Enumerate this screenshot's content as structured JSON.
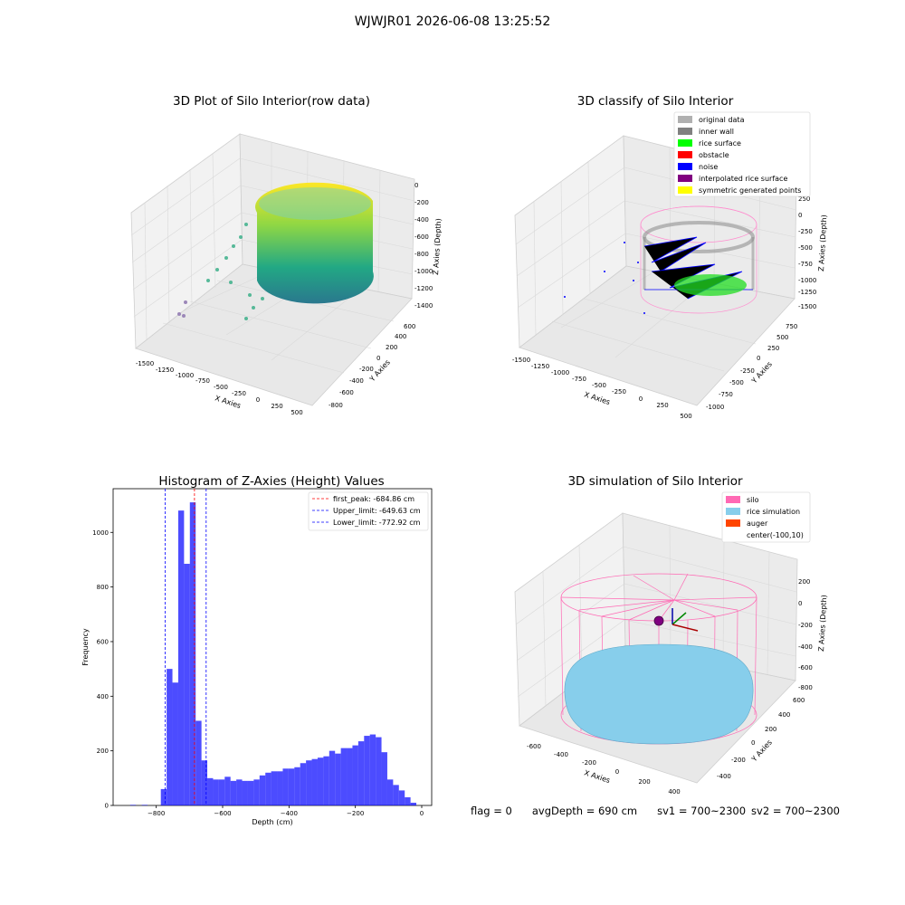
{
  "suptitle": "WJWJR01 2026-06-08 13:25:52",
  "panels": {
    "raw": {
      "title": "3D Plot of Silo Interior(row data)",
      "xlabel": "X Axies",
      "ylabel": "Y Axies",
      "zlabel": "Z Axies (Depth)",
      "xticks": [
        "-1500",
        "-1250",
        "-1000",
        "-750",
        "-500",
        "-250",
        "0",
        "250",
        "500"
      ],
      "yticks": [
        "600",
        "400",
        "200",
        "0",
        "-200",
        "-400",
        "-600",
        "-800"
      ],
      "zticks": [
        "0",
        "-200",
        "-400",
        "-600",
        "-800",
        "-1000",
        "-1200",
        "-1400"
      ]
    },
    "classify": {
      "title": "3D classify of Silo Interior",
      "xlabel": "X Axies",
      "ylabel": "Y Axies",
      "zlabel": "Z Axies (Depth)",
      "xticks": [
        "-1500",
        "-1250",
        "-1000",
        "-750",
        "-500",
        "-250",
        "0",
        "250",
        "500"
      ],
      "yticks": [
        "750",
        "500",
        "250",
        "0",
        "-250",
        "-500",
        "-750",
        "-1000"
      ],
      "zticks": [
        "250",
        "0",
        "-250",
        "-500",
        "-750",
        "-1000",
        "-1250",
        "-1500"
      ],
      "legend": [
        {
          "label": "original data",
          "color": "#b0b0b0"
        },
        {
          "label": "inner wall",
          "color": "#808080"
        },
        {
          "label": "rice surface",
          "color": "#00ff00"
        },
        {
          "label": "obstacle",
          "color": "#ff0000"
        },
        {
          "label": "noise",
          "color": "#0000ff"
        },
        {
          "label": "interpolated rice surface",
          "color": "#800080"
        },
        {
          "label": "symmetric generated points",
          "color": "#ffff00"
        }
      ]
    },
    "simulation": {
      "title": "3D simulation of Silo Interior",
      "xlabel": "X Axies",
      "ylabel": "Y Axies",
      "zlabel": "Z Axies (Depth)",
      "xticks": [
        "-600",
        "-400",
        "-200",
        "0",
        "200",
        "400"
      ],
      "yticks": [
        "600",
        "400",
        "200",
        "0",
        "-200",
        "-400"
      ],
      "zticks": [
        "200",
        "0",
        "-200",
        "-400",
        "-600",
        "-800"
      ],
      "legend": [
        {
          "label": "silo",
          "color": "#ff69b4"
        },
        {
          "label": "rice simulation",
          "color": "#87ceeb"
        },
        {
          "label": "auger",
          "color": "#ff4500"
        },
        {
          "label": "center(-100,10)",
          "color": ""
        }
      ]
    }
  },
  "footer": {
    "flag": "flag = 0",
    "avg": "avgDepth = 690 cm",
    "sv1": "sv1 = 700~2300",
    "sv2": "sv2 = 700~2300"
  },
  "chart_data": {
    "type": "bar",
    "title": "Histogram of Z-Axies (Height) Values",
    "xlabel": "Depth (cm)",
    "ylabel": "Frequency",
    "xlim": [
      -930,
      30
    ],
    "ylim": [
      0,
      1160
    ],
    "xticks": [
      -800,
      -600,
      -400,
      -200,
      0
    ],
    "yticks": [
      0,
      200,
      400,
      600,
      800,
      1000
    ],
    "color": "#0000ff",
    "bin_width": 17.5,
    "bins": [
      {
        "x": -870,
        "y": 2
      },
      {
        "x": -835,
        "y": 2
      },
      {
        "x": -777.5,
        "y": 60
      },
      {
        "x": -760,
        "y": 500
      },
      {
        "x": -742.5,
        "y": 450
      },
      {
        "x": -725,
        "y": 1080
      },
      {
        "x": -707.5,
        "y": 885
      },
      {
        "x": -690,
        "y": 1110
      },
      {
        "x": -672.5,
        "y": 310
      },
      {
        "x": -655,
        "y": 165
      },
      {
        "x": -637.5,
        "y": 100
      },
      {
        "x": -620,
        "y": 95
      },
      {
        "x": -602.5,
        "y": 95
      },
      {
        "x": -585,
        "y": 105
      },
      {
        "x": -567.5,
        "y": 90
      },
      {
        "x": -550,
        "y": 95
      },
      {
        "x": -532.5,
        "y": 90
      },
      {
        "x": -515,
        "y": 90
      },
      {
        "x": -497.5,
        "y": 95
      },
      {
        "x": -480,
        "y": 110
      },
      {
        "x": -462.5,
        "y": 120
      },
      {
        "x": -445,
        "y": 125
      },
      {
        "x": -427.5,
        "y": 125
      },
      {
        "x": -410,
        "y": 135
      },
      {
        "x": -392.5,
        "y": 135
      },
      {
        "x": -375,
        "y": 140
      },
      {
        "x": -357.5,
        "y": 155
      },
      {
        "x": -340,
        "y": 165
      },
      {
        "x": -322.5,
        "y": 170
      },
      {
        "x": -305,
        "y": 175
      },
      {
        "x": -287.5,
        "y": 180
      },
      {
        "x": -270,
        "y": 200
      },
      {
        "x": -252.5,
        "y": 190
      },
      {
        "x": -235,
        "y": 210
      },
      {
        "x": -217.5,
        "y": 210
      },
      {
        "x": -200,
        "y": 220
      },
      {
        "x": -182.5,
        "y": 235
      },
      {
        "x": -165,
        "y": 255
      },
      {
        "x": -147.5,
        "y": 260
      },
      {
        "x": -130,
        "y": 250
      },
      {
        "x": -112.5,
        "y": 195
      },
      {
        "x": -95,
        "y": 95
      },
      {
        "x": -77.5,
        "y": 75
      },
      {
        "x": -60,
        "y": 55
      },
      {
        "x": -42.5,
        "y": 30
      },
      {
        "x": -25,
        "y": 10
      }
    ],
    "vlines": [
      {
        "x": -684.86,
        "color": "#ff0000",
        "label": "first_peak: -684.86 cm"
      },
      {
        "x": -649.63,
        "color": "#0000ff",
        "label": "Upper_limit: -649.63 cm"
      },
      {
        "x": -772.92,
        "color": "#0000ff",
        "label": "Lower_limit: -772.92 cm"
      }
    ]
  }
}
